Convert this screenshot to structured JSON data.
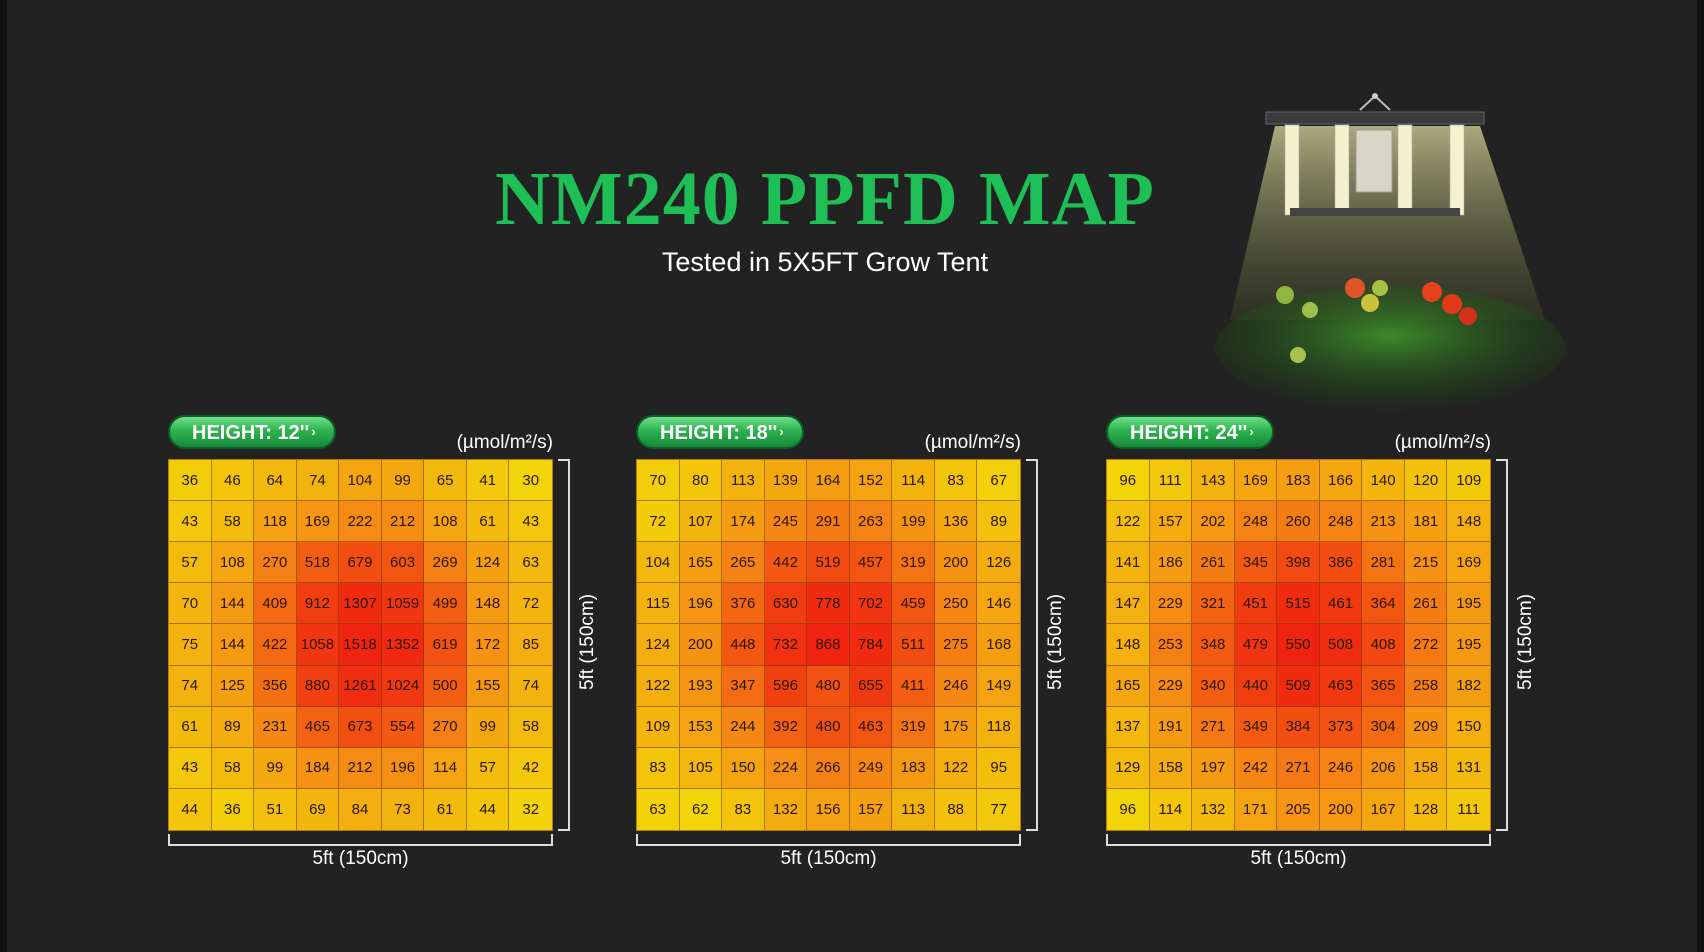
{
  "title": "NM240 PPFD MAP",
  "subtitle": "Tested in 5X5FT Grow Tent",
  "colors": {
    "title_green": "#1fbf57",
    "badge_green": "#2db34e",
    "heat_low": "#f2d40a",
    "heat_high": "#f02310",
    "background": "#222222"
  },
  "icons": {
    "illustration": "led-grow-light-over-tomato-plants-image",
    "badge_arrow": "chevron-right-icon"
  },
  "chart_data": [
    {
      "type": "heatmap",
      "badge": "HEIGHT: 12''",
      "unit": "(µmol/m²/s)",
      "xlabel": "5ft (150cm)",
      "ylabel": "5ft (150cm)",
      "values": [
        [
          36,
          46,
          64,
          74,
          104,
          99,
          65,
          41,
          30
        ],
        [
          43,
          58,
          118,
          169,
          222,
          212,
          108,
          61,
          43
        ],
        [
          57,
          108,
          270,
          518,
          679,
          603,
          269,
          124,
          63
        ],
        [
          70,
          144,
          409,
          912,
          1307,
          1059,
          499,
          148,
          72
        ],
        [
          75,
          144,
          422,
          1058,
          1518,
          1352,
          619,
          172,
          85
        ],
        [
          74,
          125,
          356,
          880,
          1261,
          1024,
          500,
          155,
          74
        ],
        [
          61,
          89,
          231,
          465,
          673,
          554,
          270,
          99,
          58
        ],
        [
          43,
          58,
          99,
          184,
          212,
          196,
          114,
          57,
          42
        ],
        [
          44,
          36,
          51,
          69,
          84,
          73,
          61,
          44,
          32
        ]
      ]
    },
    {
      "type": "heatmap",
      "badge": "HEIGHT: 18''",
      "unit": "(µmol/m²/s)",
      "xlabel": "5ft (150cm)",
      "ylabel": "5ft (150cm)",
      "values": [
        [
          70,
          80,
          113,
          139,
          164,
          152,
          114,
          83,
          67
        ],
        [
          72,
          107,
          174,
          245,
          291,
          263,
          199,
          136,
          89
        ],
        [
          104,
          165,
          265,
          442,
          519,
          457,
          319,
          200,
          126
        ],
        [
          115,
          196,
          376,
          630,
          778,
          702,
          459,
          250,
          146
        ],
        [
          124,
          200,
          448,
          732,
          868,
          784,
          511,
          275,
          168
        ],
        [
          122,
          193,
          347,
          596,
          480,
          655,
          411,
          246,
          149
        ],
        [
          109,
          153,
          244,
          392,
          480,
          463,
          319,
          175,
          118
        ],
        [
          83,
          105,
          150,
          224,
          266,
          249,
          183,
          122,
          95
        ],
        [
          63,
          62,
          83,
          132,
          156,
          157,
          113,
          88,
          77
        ]
      ]
    },
    {
      "type": "heatmap",
      "badge": "HEIGHT: 24''",
      "unit": "(µmol/m²/s)",
      "xlabel": "5ft (150cm)",
      "ylabel": "5ft (150cm)",
      "values": [
        [
          96,
          111,
          143,
          169,
          183,
          166,
          140,
          120,
          109
        ],
        [
          122,
          157,
          202,
          248,
          260,
          248,
          213,
          181,
          148
        ],
        [
          141,
          186,
          261,
          345,
          398,
          386,
          281,
          215,
          169
        ],
        [
          147,
          229,
          321,
          451,
          515,
          461,
          364,
          261,
          195
        ],
        [
          148,
          253,
          348,
          479,
          550,
          508,
          408,
          272,
          195
        ],
        [
          165,
          229,
          340,
          440,
          509,
          463,
          365,
          258,
          182
        ],
        [
          137,
          191,
          271,
          349,
          384,
          373,
          304,
          209,
          150
        ],
        [
          129,
          158,
          197,
          242,
          271,
          246,
          206,
          158,
          131
        ],
        [
          96,
          114,
          132,
          171,
          205,
          200,
          167,
          128,
          111
        ]
      ]
    }
  ]
}
